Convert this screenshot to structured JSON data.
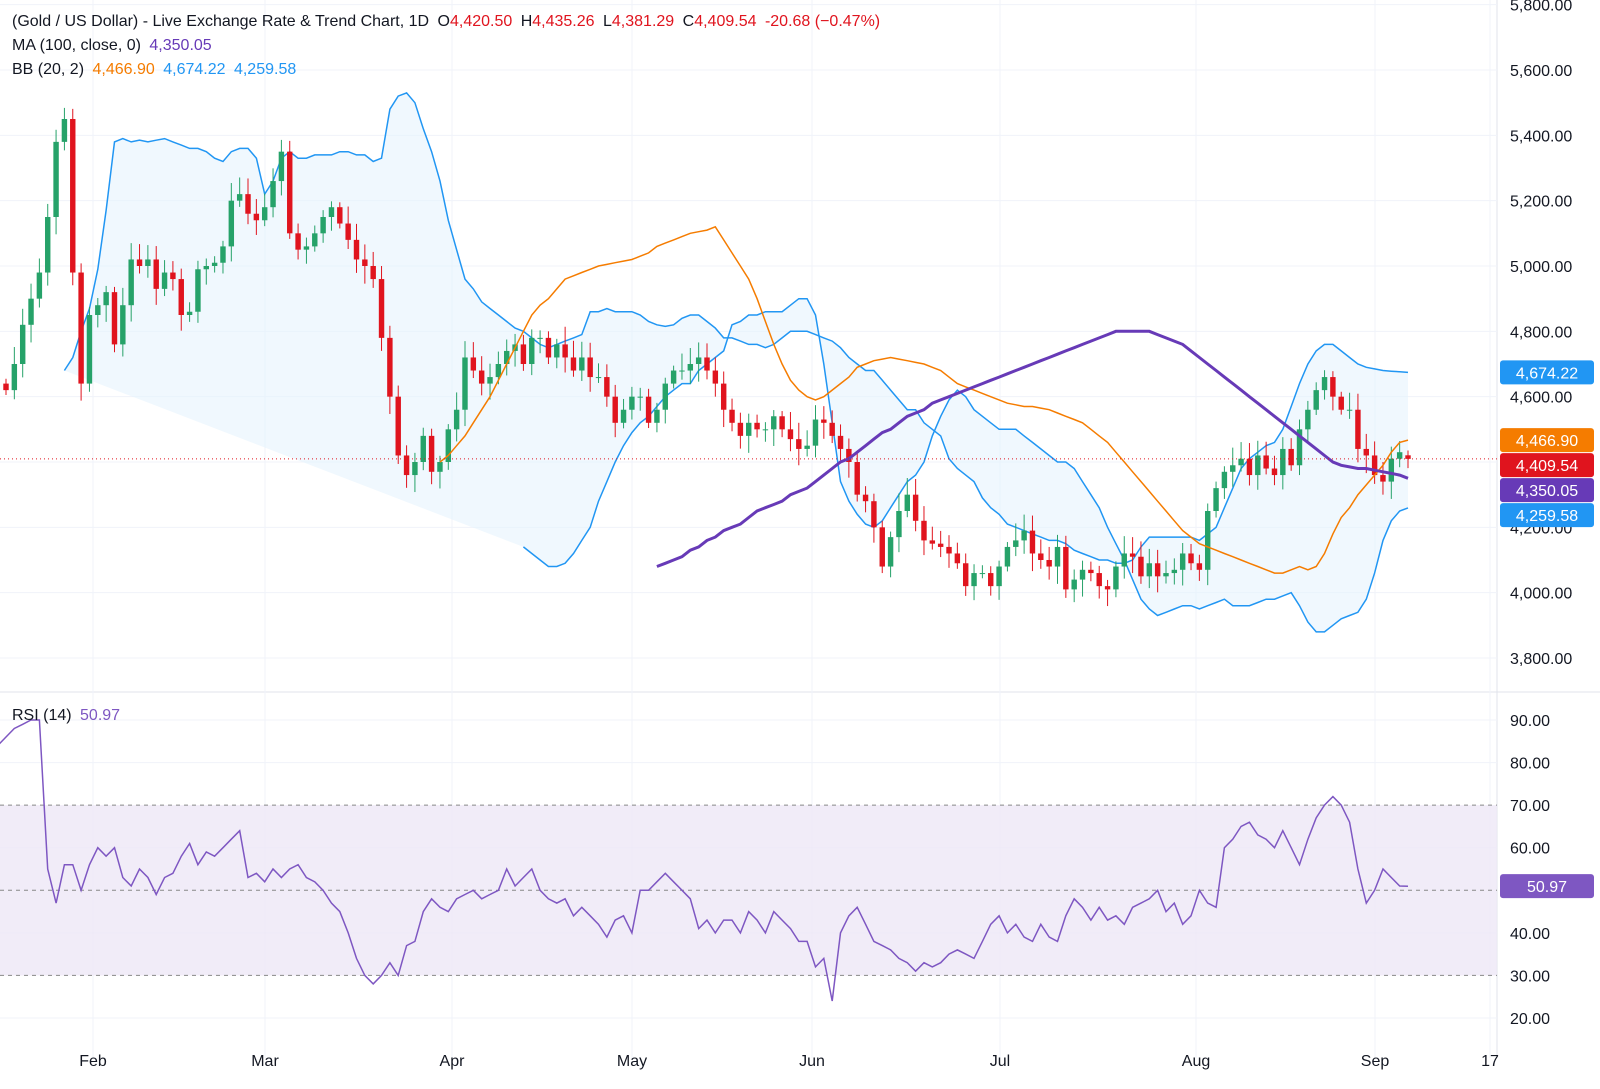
{
  "header": {
    "title": "(Gold / US Dollar) - Live Exchange Rate & Trend Chart, 1D",
    "o_label": "O",
    "o_value": "4,420.50",
    "h_label": "H",
    "h_value": "4,435.26",
    "l_label": "L",
    "l_value": "4,381.29",
    "c_label": "C",
    "c_value": "4,409.54",
    "change": "-20.68 (−0.47%)"
  },
  "indicators": {
    "ma_label": "MA (100, close, 0)",
    "ma_value": "4,350.05",
    "bb_label": "BB (20, 2)",
    "bb_basis": "4,466.90",
    "bb_upper": "4,674.22",
    "bb_lower": "4,259.58",
    "rsi_label": "RSI (14)",
    "rsi_value": "50.97"
  },
  "colors": {
    "up": "#26a269",
    "down": "#e0141e",
    "ma": "#673ab7",
    "bb_basis": "#f57c00",
    "bb_band": "#2196f3",
    "bb_fill": "#e3f2fd",
    "rsi": "#7e57c2",
    "rsi_fill": "#ede7f6",
    "grid": "#f0f3fa",
    "last_price": "#e0141e"
  },
  "chart_data": [
    {
      "type": "candlestick",
      "title": "(Gold / US Dollar) - Live Exchange Rate & Trend Chart, 1D",
      "x_axis_labels": [
        "Feb",
        "Mar",
        "Apr",
        "May",
        "Jun",
        "Jul",
        "Aug",
        "Sep",
        "17"
      ],
      "y_ticks": [
        "5,800.00",
        "5,600.00",
        "5,400.00",
        "5,200.00",
        "5,000.00",
        "4,800.00",
        "4,600.00",
        "4,400.00",
        "4,200.00",
        "4,000.00",
        "3,800.00"
      ],
      "ylim": [
        3700,
        5800
      ],
      "grid": true,
      "last": {
        "open": 4420.5,
        "high": 4435.26,
        "low": 4381.29,
        "close": 4409.54
      },
      "badges": [
        {
          "label": "4,674.22",
          "value": 4674.22,
          "color": "#2196f3"
        },
        {
          "label": "4,466.90",
          "value": 4466.9,
          "color": "#f57c00"
        },
        {
          "label": "4,409.54",
          "value": 4409.54,
          "color": "#e0141e"
        },
        {
          "label": "4,350.05",
          "value": 4350.05,
          "color": "#673ab7"
        },
        {
          "label": "4,259.58",
          "value": 4259.58,
          "color": "#2196f3"
        }
      ],
      "closes": [
        4620,
        4700,
        4820,
        4900,
        4980,
        5150,
        5380,
        5450,
        4980,
        4640,
        4850,
        4880,
        4920,
        4760,
        4880,
        5020,
        5000,
        5020,
        4930,
        4980,
        4960,
        4850,
        4860,
        4990,
        5000,
        5010,
        5060,
        5200,
        5220,
        5160,
        5140,
        5180,
        5260,
        5350,
        5100,
        5050,
        5060,
        5100,
        5150,
        5180,
        5130,
        5080,
        5020,
        5000,
        4960,
        4780,
        4600,
        4420,
        4360,
        4400,
        4480,
        4370,
        4400,
        4500,
        4560,
        4720,
        4680,
        4640,
        4660,
        4700,
        4740,
        4760,
        4700,
        4780,
        4780,
        4720,
        4760,
        4720,
        4680,
        4720,
        4660,
        4660,
        4600,
        4520,
        4560,
        4600,
        4600,
        4520,
        4560,
        4640,
        4680,
        4680,
        4700,
        4720,
        4680,
        4640,
        4560,
        4520,
        4480,
        4520,
        4500,
        4500,
        4540,
        4500,
        4470,
        4440,
        4450,
        4530,
        4520,
        4480,
        4440,
        4400,
        4300,
        4280,
        4200,
        4080,
        4170,
        4250,
        4300,
        4220,
        4160,
        4150,
        4140,
        4120,
        4090,
        4020,
        4060,
        4060,
        4020,
        4080,
        4140,
        4160,
        4190,
        4120,
        4100,
        4080,
        4140,
        4010,
        4040,
        4070,
        4060,
        4020,
        4010,
        4080,
        4120,
        4110,
        4050,
        4090,
        4050,
        4060,
        4070,
        4120,
        4090,
        4070,
        4250,
        4320,
        4370,
        4390,
        4410,
        4360,
        4420,
        4380,
        4360,
        4440,
        4390,
        4500,
        4560,
        4620,
        4660,
        4600,
        4560,
        4560,
        4440,
        4420,
        4360,
        4340,
        4410,
        4430,
        4409.54
      ],
      "bb_upper": [
        4680,
        4720,
        4800,
        4870,
        4990,
        5170,
        5380,
        5390,
        5380,
        5385,
        5380,
        5385,
        5390,
        5380,
        5370,
        5360,
        5360,
        5350,
        5330,
        5320,
        5350,
        5360,
        5360,
        5330,
        5220,
        5260,
        5330,
        5350,
        5330,
        5330,
        5340,
        5340,
        5340,
        5350,
        5350,
        5340,
        5340,
        5320,
        5330,
        5480,
        5520,
        5530,
        5500,
        5420,
        5350,
        5260,
        5140,
        5050,
        4960,
        4930,
        4890,
        4870,
        4850,
        4830,
        4810,
        4800,
        4780,
        4760,
        4750,
        4760,
        4770,
        4780,
        4790,
        4860,
        4860,
        4870,
        4860,
        4860,
        4860,
        4850,
        4830,
        4820,
        4815,
        4820,
        4840,
        4850,
        4850,
        4830,
        4810,
        4780,
        4780,
        4770,
        4760,
        4760,
        4750,
        4760,
        4780,
        4800,
        4800,
        4800,
        4790,
        4780,
        4770,
        4750,
        4720,
        4700,
        4680,
        4680,
        4650,
        4620,
        4590,
        4560,
        4560,
        4520,
        4500,
        4480,
        4410,
        4380,
        4360,
        4340,
        4290,
        4260,
        4240,
        4210,
        4200,
        4190,
        4180,
        4170,
        4160,
        4160,
        4150,
        4130,
        4120,
        4110,
        4100,
        4100,
        4090,
        4090,
        4100,
        4140,
        4170,
        4170,
        4170,
        4170,
        4170,
        4170,
        4160,
        4180,
        4200,
        4260,
        4320,
        4380,
        4410,
        4430,
        4450,
        4460,
        4500,
        4570,
        4640,
        4700,
        4740,
        4760,
        4760,
        4740,
        4720,
        4700,
        4690,
        4685,
        4680,
        4678,
        4676,
        4674.22
      ],
      "bb_basis": [
        4400,
        4420,
        4450,
        4480,
        4520,
        4560,
        4600,
        4650,
        4700,
        4750,
        4800,
        4850,
        4880,
        4900,
        4930,
        4960,
        4970,
        4980,
        4990,
        5000,
        5005,
        5010,
        5015,
        5020,
        5030,
        5040,
        5060,
        5070,
        5080,
        5090,
        5100,
        5105,
        5110,
        5120,
        5080,
        5040,
        5000,
        4960,
        4900,
        4830,
        4760,
        4700,
        4650,
        4620,
        4600,
        4590,
        4600,
        4620,
        4640,
        4660,
        4690,
        4700,
        4710,
        4715,
        4720,
        4715,
        4710,
        4705,
        4700,
        4690,
        4680,
        4660,
        4640,
        4630,
        4620,
        4610,
        4600,
        4590,
        4580,
        4575,
        4570,
        4570,
        4565,
        4560,
        4550,
        4540,
        4530,
        4520,
        4500,
        4480,
        4460,
        4430,
        4400,
        4370,
        4340,
        4310,
        4280,
        4250,
        4220,
        4190,
        4170,
        4150,
        4140,
        4130,
        4120,
        4110,
        4100,
        4090,
        4080,
        4070,
        4060,
        4060,
        4070,
        4080,
        4070,
        4080,
        4120,
        4180,
        4230,
        4260,
        4300,
        4330,
        4360,
        4390,
        4430,
        4460,
        4466.9
      ],
      "bb_lower": [
        4140,
        4120,
        4100,
        4080,
        4080,
        4090,
        4120,
        4160,
        4200,
        4280,
        4340,
        4400,
        4450,
        4490,
        4520,
        4540,
        4570,
        4600,
        4620,
        4640,
        4640,
        4680,
        4700,
        4720,
        4740,
        4820,
        4830,
        4850,
        4850,
        4860,
        4860,
        4860,
        4880,
        4900,
        4900,
        4850,
        4700,
        4520,
        4340,
        4280,
        4240,
        4210,
        4200,
        4220,
        4260,
        4300,
        4340,
        4360,
        4400,
        4480,
        4540,
        4590,
        4620,
        4600,
        4560,
        4540,
        4520,
        4500,
        4500,
        4500,
        4480,
        4460,
        4440,
        4420,
        4400,
        4400,
        4380,
        4340,
        4300,
        4260,
        4200,
        4150,
        4100,
        4040,
        3980,
        3950,
        3930,
        3940,
        3950,
        3960,
        3960,
        3950,
        3960,
        3970,
        3980,
        3960,
        3960,
        3960,
        3970,
        3980,
        3980,
        3990,
        4000,
        3960,
        3910,
        3880,
        3880,
        3900,
        3920,
        3930,
        3940,
        3980,
        4060,
        4160,
        4220,
        4250,
        4259.58
      ],
      "ma100": [
        4080,
        4090,
        4100,
        4110,
        4130,
        4140,
        4160,
        4170,
        4190,
        4200,
        4210,
        4230,
        4250,
        4260,
        4270,
        4280,
        4300,
        4310,
        4320,
        4340,
        4360,
        4380,
        4400,
        4410,
        4430,
        4450,
        4470,
        4490,
        4500,
        4520,
        4540,
        4550,
        4560,
        4580,
        4590,
        4600,
        4610,
        4620,
        4630,
        4640,
        4650,
        4660,
        4670,
        4680,
        4690,
        4700,
        4710,
        4720,
        4730,
        4740,
        4750,
        4760,
        4770,
        4780,
        4790,
        4800,
        4800,
        4800,
        4800,
        4800,
        4790,
        4780,
        4770,
        4760,
        4740,
        4720,
        4700,
        4680,
        4660,
        4640,
        4620,
        4600,
        4580,
        4560,
        4540,
        4520,
        4500,
        4480,
        4460,
        4440,
        4420,
        4400,
        4390,
        4385,
        4380,
        4380,
        4375,
        4370,
        4365,
        4360,
        4350.05
      ]
    },
    {
      "type": "line",
      "title": "RSI (14)",
      "y_ticks": [
        "90.00",
        "80.00",
        "70.00",
        "60.00",
        "50.00",
        "40.00",
        "30.00",
        "20.00"
      ],
      "ylim": [
        17,
        93
      ],
      "band": [
        30,
        70
      ],
      "values": [
        68,
        72,
        76,
        80,
        82,
        84,
        86,
        88,
        89,
        90,
        90,
        55,
        47,
        56,
        56,
        50,
        56,
        60,
        58,
        60,
        53,
        51,
        55,
        53,
        49,
        53,
        54,
        58,
        61,
        56,
        59,
        58,
        60,
        62,
        64,
        53,
        54,
        52,
        55,
        53,
        55,
        56,
        53,
        52,
        50,
        47,
        45,
        40,
        34,
        30,
        28,
        30,
        33,
        30,
        37,
        38,
        45,
        48,
        46,
        45,
        48,
        49,
        50,
        48,
        49,
        50,
        55,
        51,
        53,
        55,
        50,
        48,
        47,
        48,
        44,
        46,
        44,
        42,
        39,
        43,
        44,
        40,
        50,
        50,
        52,
        54,
        52,
        50,
        48,
        41,
        43,
        40,
        43,
        43,
        40,
        45,
        43,
        40,
        45,
        43,
        41,
        38,
        38,
        32,
        34,
        24,
        40,
        44,
        46,
        42,
        38,
        37,
        36,
        34,
        33,
        31,
        33,
        32,
        33,
        35,
        36,
        35,
        34,
        38,
        42,
        44,
        40,
        42,
        39,
        38,
        42,
        39,
        38,
        44,
        48,
        46,
        43,
        46,
        43,
        44,
        42,
        46,
        47,
        48,
        50,
        45,
        47,
        42,
        44,
        50,
        47,
        46,
        60,
        62,
        65,
        66,
        63,
        62,
        60,
        64,
        60,
        56,
        62,
        67,
        70,
        72,
        70,
        66,
        55,
        47,
        50,
        55,
        53,
        51,
        50.97
      ]
    }
  ]
}
